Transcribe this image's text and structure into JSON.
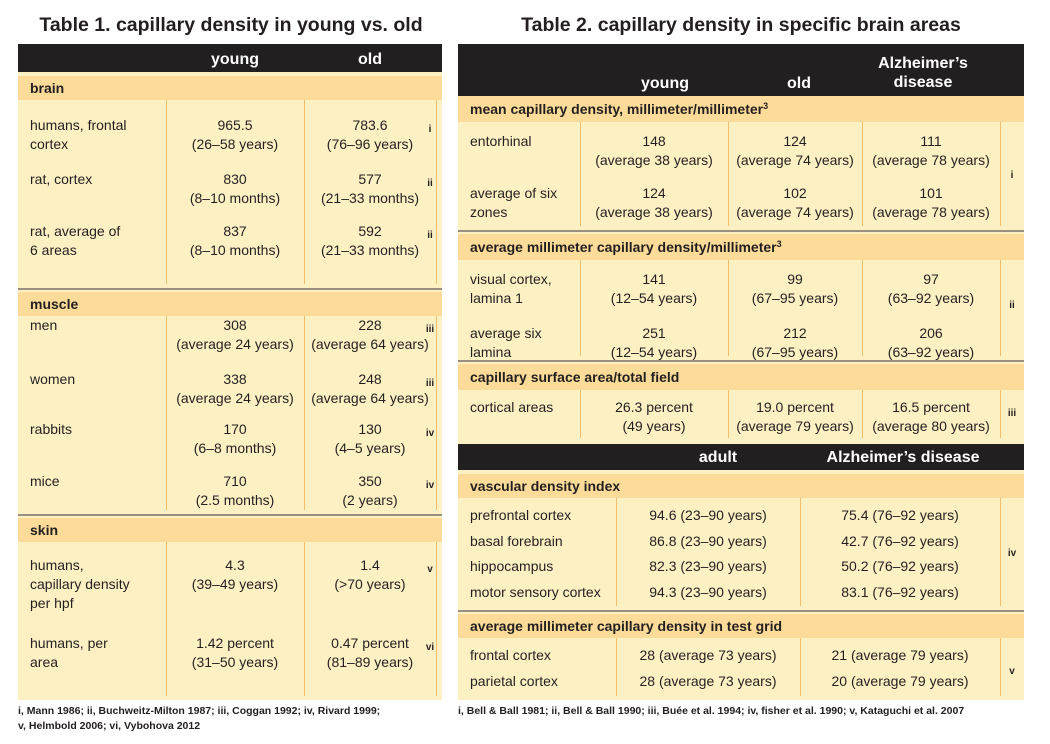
{
  "t1": {
    "title": "Table 1. capillary density in young vs. old",
    "col_young": "young",
    "col_old": "old",
    "sections": [
      {
        "label": "brain",
        "rows": [
          {
            "name": [
              "humans, frontal",
              "cortex"
            ],
            "young": [
              "965.5",
              "(26–58 years)"
            ],
            "old": [
              "783.6",
              "(76–96 years)"
            ],
            "ref": "i"
          },
          {
            "name": [
              "rat, cortex"
            ],
            "young": [
              "830",
              "(8–10 months)"
            ],
            "old": [
              "577",
              "(21–33 months)"
            ],
            "ref": "ii"
          },
          {
            "name": [
              "rat, average of",
              "6 areas"
            ],
            "young": [
              "837",
              "(8–10 months)"
            ],
            "old": [
              "592",
              "(21–33 months)"
            ],
            "ref": "ii"
          }
        ]
      },
      {
        "label": "muscle",
        "rows": [
          {
            "name": [
              "men"
            ],
            "young": [
              "308",
              "(average 24 years)"
            ],
            "old": [
              "228",
              "(average 64 years)"
            ],
            "ref": "iii"
          },
          {
            "name": [
              "women"
            ],
            "young": [
              "338",
              "(average 24 years)"
            ],
            "old": [
              "248",
              "(average 64 years)"
            ],
            "ref": "iii"
          },
          {
            "name": [
              "rabbits"
            ],
            "young": [
              "170",
              "(6–8 months)"
            ],
            "old": [
              "130",
              "(4–5 years)"
            ],
            "ref": "iv"
          },
          {
            "name": [
              "mice"
            ],
            "young": [
              "710",
              "(2.5 months)"
            ],
            "old": [
              "350",
              "(2 years)"
            ],
            "ref": "iv"
          }
        ]
      },
      {
        "label": "skin",
        "rows": [
          {
            "name": [
              "humans,",
              "capillary density",
              "per hpf"
            ],
            "young": [
              "4.3",
              "(39–49 years)"
            ],
            "old": [
              "1.4",
              "(>70 years)"
            ],
            "ref": "v"
          },
          {
            "name": [
              "humans, per",
              "area"
            ],
            "young": [
              "1.42 percent",
              "(31–50 years)"
            ],
            "old": [
              "0.47 percent",
              "(81–89 years)"
            ],
            "ref": "vi"
          }
        ]
      }
    ],
    "footnote": [
      "i, Mann 1986; ii, Buchweitz-Milton 1987; iii, Coggan 1992; iv, Rivard 1999;",
      "v, Helmbold 2006; vi, Vybohova 2012"
    ]
  },
  "t2": {
    "title": "Table 2. capillary density in specific brain areas",
    "col_young": "young",
    "col_old": "old",
    "col_ad": [
      "Alzheimer’s",
      "disease"
    ],
    "sections": [
      {
        "label": "mean capillary density, millimeter/millimeter",
        "sup": "3",
        "ref": "i",
        "rows": [
          {
            "name": [
              "entorhinal"
            ],
            "vals": [
              [
                "148",
                "(average 38 years)"
              ],
              [
                "124",
                "(average 74 years)"
              ],
              [
                "111",
                "(average 78 years)"
              ]
            ]
          },
          {
            "name": [
              "average of six",
              "zones"
            ],
            "vals": [
              [
                "124",
                "(average 38 years)"
              ],
              [
                "102",
                "(average 74 years)"
              ],
              [
                "101",
                "(average 78 years)"
              ]
            ]
          }
        ]
      },
      {
        "label": "average millimeter capillary density/millimeter",
        "sup": "3",
        "ref": "ii",
        "rows": [
          {
            "name": [
              "visual cortex,",
              "lamina 1"
            ],
            "vals": [
              [
                "141",
                "(12–54 years)"
              ],
              [
                "99",
                "(67–95 years)"
              ],
              [
                "97",
                "(63–92 years)"
              ]
            ]
          },
          {
            "name": [
              "average six",
              "lamina"
            ],
            "vals": [
              [
                "251",
                "(12–54 years)"
              ],
              [
                "212",
                "(67–95 years)"
              ],
              [
                "206",
                "(63–92 years)"
              ]
            ]
          }
        ]
      },
      {
        "label": "capillary surface area/total field",
        "sup": "",
        "ref": "iii",
        "rows": [
          {
            "name": [
              "cortical areas"
            ],
            "vals": [
              [
                "26.3 percent",
                "(49 years)"
              ],
              [
                "19.0 percent",
                "(average 79 years)"
              ],
              [
                "16.5 percent",
                "(average 80 years)"
              ]
            ]
          }
        ]
      }
    ],
    "header2": {
      "adult": "adult",
      "ad": "Alzheimer’s disease"
    },
    "sections2": [
      {
        "label": "vascular density index",
        "ref": "iv",
        "rows": [
          {
            "name": "prefrontal cortex",
            "adult": "94.6 (23–90 years)",
            "ad": "75.4 (76–92 years)"
          },
          {
            "name": "basal forebrain",
            "adult": "86.8 (23–90 years)",
            "ad": "42.7 (76–92 years)"
          },
          {
            "name": "hippocampus",
            "adult": "82.3 (23–90 years)",
            "ad": "50.2 (76–92 years)"
          },
          {
            "name": "motor sensory cortex",
            "adult": "94.3 (23–90 years)",
            "ad": "83.1 (76–92 years)"
          }
        ]
      },
      {
        "label": "average millimeter capillary density in test grid",
        "ref": "v",
        "rows": [
          {
            "name": "frontal cortex",
            "adult": "28 (average 73 years)",
            "ad": "21 (average 79 years)"
          },
          {
            "name": "parietal cortex",
            "adult": "28 (average 73 years)",
            "ad": "20 (average 79 years)"
          }
        ]
      }
    ],
    "footnote": "i, Bell & Ball 1981; ii, Bell & Ball 1990; iii, Buée et al. 1994; iv, fisher et al. 1990; v, Kataguchi et al. 2007"
  }
}
